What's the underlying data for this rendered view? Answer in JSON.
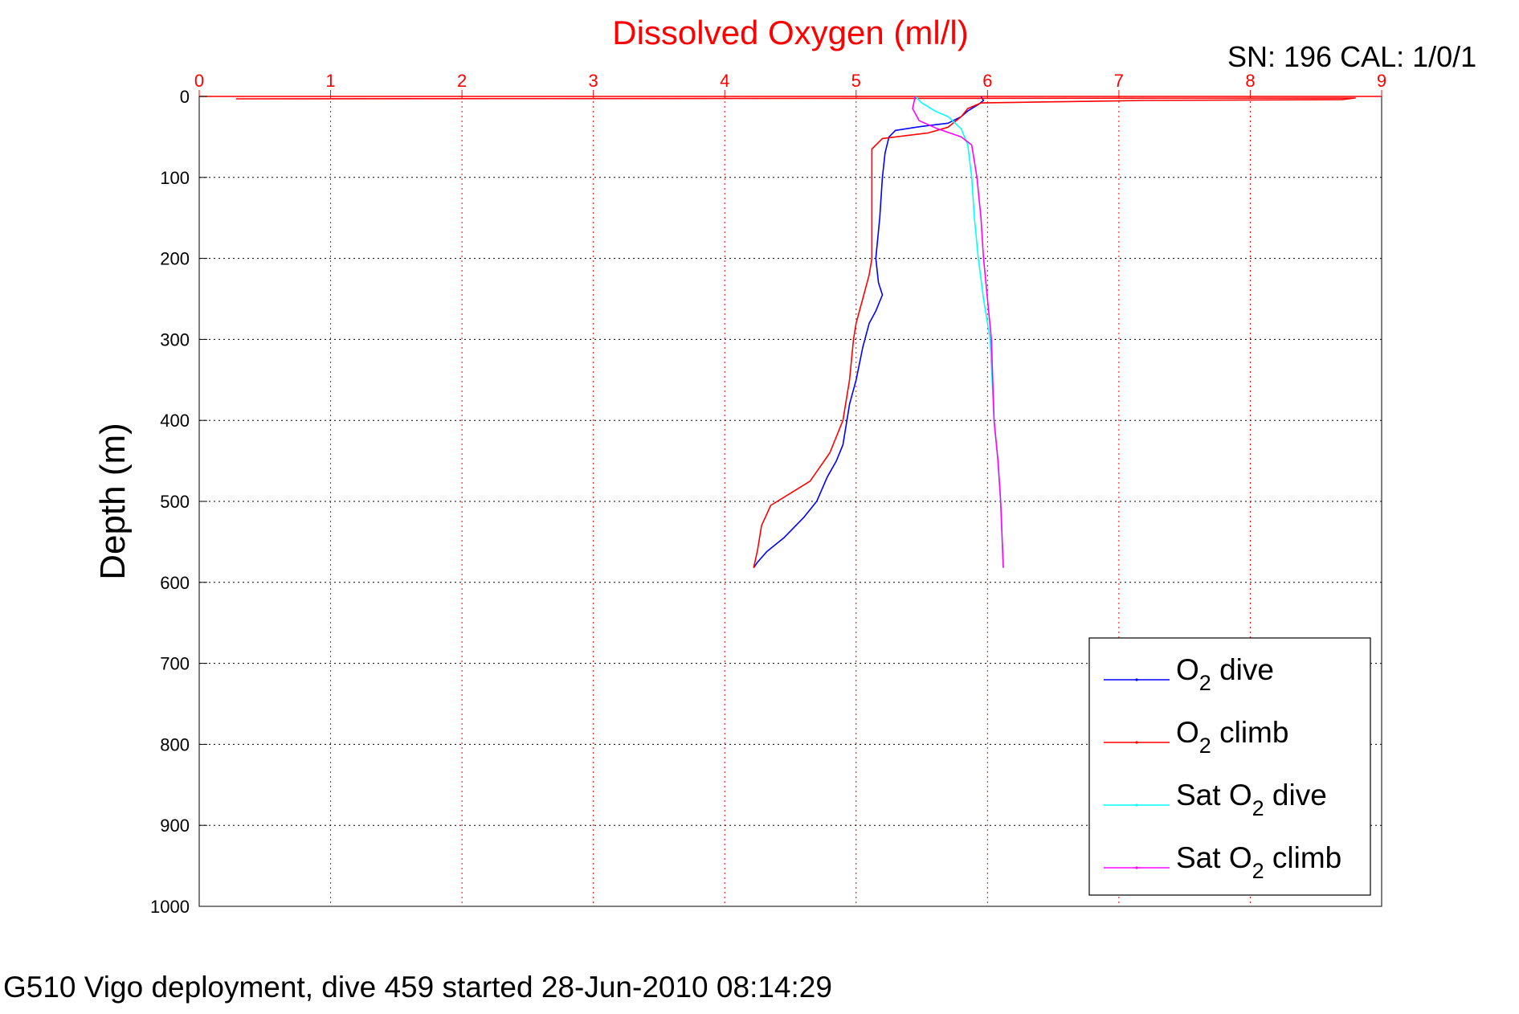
{
  "caption": "G510 Vigo deployment, dive 459 started 28-Jun-2010 08:14:29",
  "serial_label": "SN: 196  CAL: 1/0/1",
  "chart_data": {
    "type": "line",
    "title": "Dissolved Oxygen (ml/l)",
    "xlabel": "",
    "ylabel": "Depth (m)",
    "xlim": [
      0,
      9
    ],
    "ylim": [
      0,
      1000
    ],
    "y_reversed": true,
    "x_axis_position": "top",
    "x_ticks": [
      "0",
      "1",
      "2",
      "3",
      "4",
      "5",
      "6",
      "7",
      "8",
      "9"
    ],
    "y_ticks": [
      "0",
      "100",
      "200",
      "300",
      "400",
      "500",
      "600",
      "700",
      "800",
      "900",
      "1000"
    ],
    "grid": true,
    "colors": {
      "title": "#ff0000",
      "x_axis": "#ff0000",
      "y_axis": "#000000",
      "o2_dive": "#0000ff",
      "o2_climb": "#ff0000",
      "sat_dive": "#00ffff",
      "sat_climb": "#ff00ff"
    },
    "legend": {
      "position": "bottom-right",
      "entries": [
        {
          "key": "o2_dive",
          "base": "O",
          "sub": "2",
          "suffix": " dive"
        },
        {
          "key": "o2_climb",
          "base": "O",
          "sub": "2",
          "suffix": " climb"
        },
        {
          "key": "sat_dive",
          "base": "Sat O",
          "sub": "2",
          "suffix": " dive"
        },
        {
          "key": "sat_climb",
          "base": "Sat O",
          "sub": "2",
          "suffix": " climb"
        }
      ]
    },
    "series": [
      {
        "key": "o2_dive",
        "color": "#0000ff",
        "points": [
          [
            5.95,
            0
          ],
          [
            5.97,
            5
          ],
          [
            5.93,
            10
          ],
          [
            5.85,
            18
          ],
          [
            5.8,
            25
          ],
          [
            5.7,
            33
          ],
          [
            5.5,
            37
          ],
          [
            5.3,
            42
          ],
          [
            5.25,
            50
          ],
          [
            5.22,
            70
          ],
          [
            5.2,
            100
          ],
          [
            5.18,
            150
          ],
          [
            5.15,
            200
          ],
          [
            5.17,
            230
          ],
          [
            5.2,
            245
          ],
          [
            5.15,
            265
          ],
          [
            5.1,
            280
          ],
          [
            5.05,
            310
          ],
          [
            5,
            350
          ],
          [
            4.95,
            380
          ],
          [
            4.9,
            430
          ],
          [
            4.85,
            450
          ],
          [
            4.78,
            470
          ],
          [
            4.7,
            500
          ],
          [
            4.6,
            520
          ],
          [
            4.45,
            545
          ],
          [
            4.32,
            562
          ],
          [
            4.25,
            575
          ],
          [
            4.22,
            582
          ]
        ]
      },
      {
        "key": "o2_climb",
        "color": "#ff0000",
        "points": [
          [
            0.28,
            3
          ],
          [
            8.8,
            2
          ],
          [
            8.7,
            4
          ],
          [
            7.2,
            5
          ],
          [
            5.95,
            8
          ],
          [
            5.85,
            15
          ],
          [
            5.8,
            25
          ],
          [
            5.7,
            38
          ],
          [
            5.55,
            45
          ],
          [
            5.2,
            52
          ],
          [
            5.12,
            65
          ],
          [
            5.12,
            100
          ],
          [
            5.12,
            150
          ],
          [
            5.12,
            200
          ],
          [
            5.1,
            220
          ],
          [
            5.05,
            250
          ],
          [
            5.0,
            280
          ],
          [
            4.98,
            300
          ],
          [
            4.95,
            350
          ],
          [
            4.9,
            400
          ],
          [
            4.8,
            440
          ],
          [
            4.65,
            475
          ],
          [
            4.5,
            490
          ],
          [
            4.35,
            505
          ],
          [
            4.28,
            530
          ],
          [
            4.25,
            560
          ],
          [
            4.22,
            582
          ]
        ]
      },
      {
        "key": "sat_dive",
        "color": "#00ffff",
        "points": [
          [
            5.45,
            0
          ],
          [
            5.5,
            8
          ],
          [
            5.6,
            18
          ],
          [
            5.7,
            25
          ],
          [
            5.8,
            40
          ],
          [
            5.85,
            60
          ],
          [
            5.88,
            100
          ],
          [
            5.9,
            150
          ],
          [
            5.93,
            200
          ],
          [
            5.97,
            250
          ],
          [
            6.02,
            300
          ],
          [
            6.05,
            400
          ],
          [
            6.08,
            450
          ],
          [
            6.1,
            500
          ],
          [
            6.12,
            582
          ]
        ]
      },
      {
        "key": "sat_climb",
        "color": "#ff00ff",
        "points": [
          [
            5.45,
            0
          ],
          [
            5.43,
            15
          ],
          [
            5.48,
            30
          ],
          [
            5.62,
            40
          ],
          [
            5.8,
            50
          ],
          [
            5.88,
            60
          ],
          [
            5.92,
            100
          ],
          [
            5.95,
            150
          ],
          [
            5.97,
            200
          ],
          [
            6.0,
            250
          ],
          [
            6.03,
            300
          ],
          [
            6.05,
            400
          ],
          [
            6.08,
            450
          ],
          [
            6.1,
            500
          ],
          [
            6.12,
            582
          ]
        ]
      }
    ]
  }
}
